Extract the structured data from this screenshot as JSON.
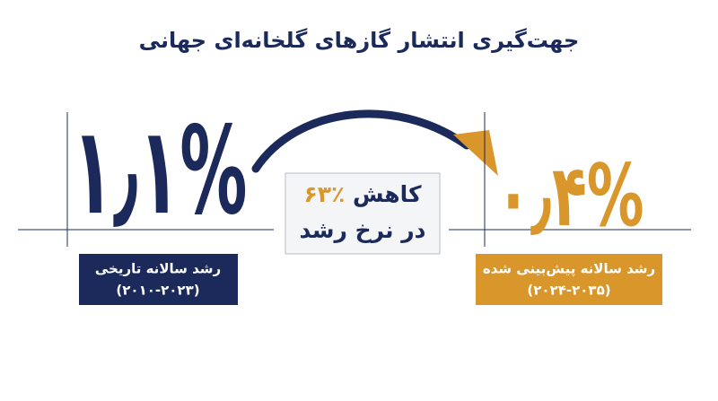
{
  "title": "جهت‌گیری انتشار گازهای گلخانه‌ای جهانی",
  "left": {
    "value": "۱٫۱%",
    "label": "رشد سالانه تاریخی",
    "period": "(۲۰۱۰-۲۰۲۳)"
  },
  "middle": {
    "highlight": "٪۶۳",
    "line1": "کاهش",
    "line2": "در نرخ رشد"
  },
  "right": {
    "value": "۰٫۴%",
    "label": "رشد سالانه پیش‌بینی شده",
    "period": "(۲۰۲۴-۲۰۳۵)"
  }
}
